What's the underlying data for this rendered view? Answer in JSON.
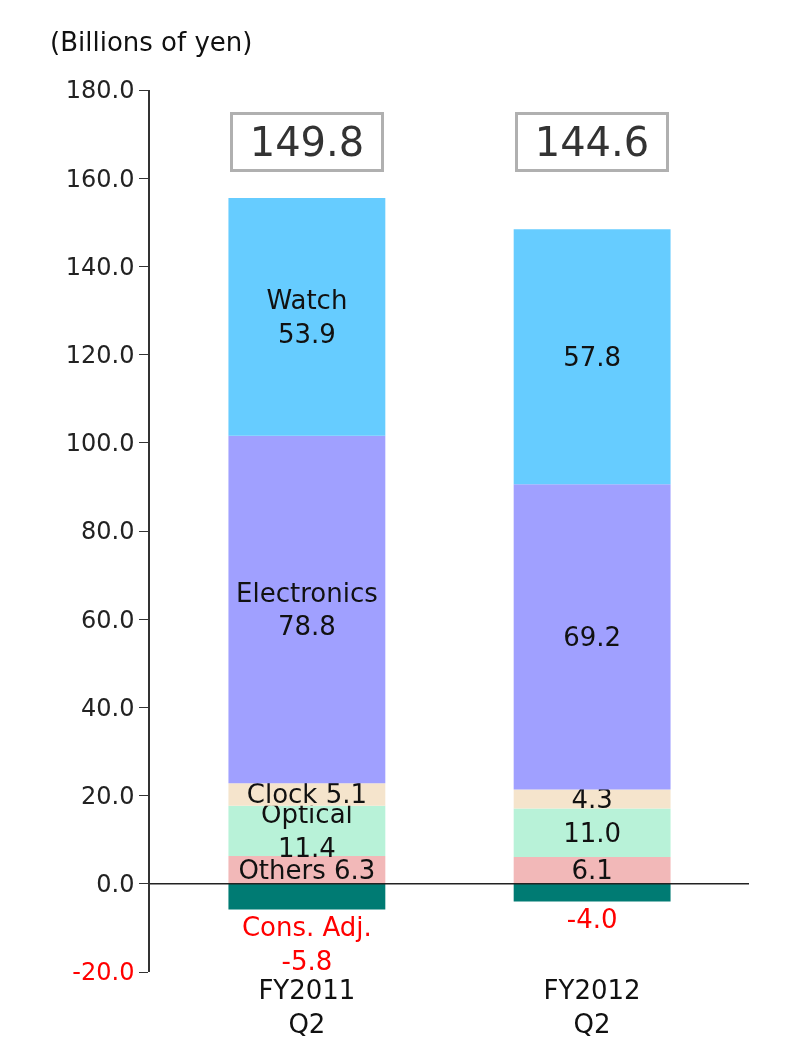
{
  "chart_data": {
    "type": "bar",
    "stacked": true,
    "ylabel": "(Billions of yen)",
    "categories": [
      "FY2011\nQ2",
      "FY2012\nQ2"
    ],
    "series": [
      {
        "name": "Others",
        "color": "#f2b8b8",
        "values": [
          6.3,
          6.1
        ],
        "value_labels": [
          "6.3",
          "6.1"
        ]
      },
      {
        "name": "Optical",
        "color": "#b8f2d8",
        "values": [
          11.4,
          11.0
        ],
        "value_labels": [
          "11.4",
          "11.0"
        ]
      },
      {
        "name": "Clock",
        "color": "#f5e4cc",
        "values": [
          5.1,
          4.3
        ],
        "value_labels": [
          "5.1",
          "4.3"
        ]
      },
      {
        "name": "Electronics",
        "color": "#a0a0ff",
        "values": [
          78.8,
          69.2
        ],
        "value_labels": [
          "78.8",
          "69.2"
        ]
      },
      {
        "name": "Watch",
        "color": "#66ccff",
        "values": [
          53.9,
          57.8
        ],
        "value_labels": [
          "53.9",
          "57.8"
        ]
      },
      {
        "name": "Cons. Adj.",
        "color": "#007b73",
        "values": [
          -5.8,
          -4.0
        ],
        "value_labels": [
          "-5.8",
          "-4.0"
        ]
      }
    ],
    "totals": [
      "149.8",
      "144.6"
    ],
    "ylim": [
      -20,
      180
    ],
    "yticks": [
      {
        "value": -20,
        "label": "-20.0"
      },
      {
        "value": 0,
        "label": "0.0"
      },
      {
        "value": 20,
        "label": "20.0"
      },
      {
        "value": 40,
        "label": "40.0"
      },
      {
        "value": 60,
        "label": "60.0"
      },
      {
        "value": 80,
        "label": "80.0"
      },
      {
        "value": 100,
        "label": "100.0"
      },
      {
        "value": 120,
        "label": "120.0"
      },
      {
        "value": 140,
        "label": "140.0"
      },
      {
        "value": 160,
        "label": "160.0"
      },
      {
        "value": 180,
        "label": "180.0"
      }
    ],
    "ref_lines": [
      {
        "axis": "y",
        "value": 0,
        "color": "#222222",
        "line_style": "solid"
      }
    ],
    "grid": false,
    "legend": false
  }
}
